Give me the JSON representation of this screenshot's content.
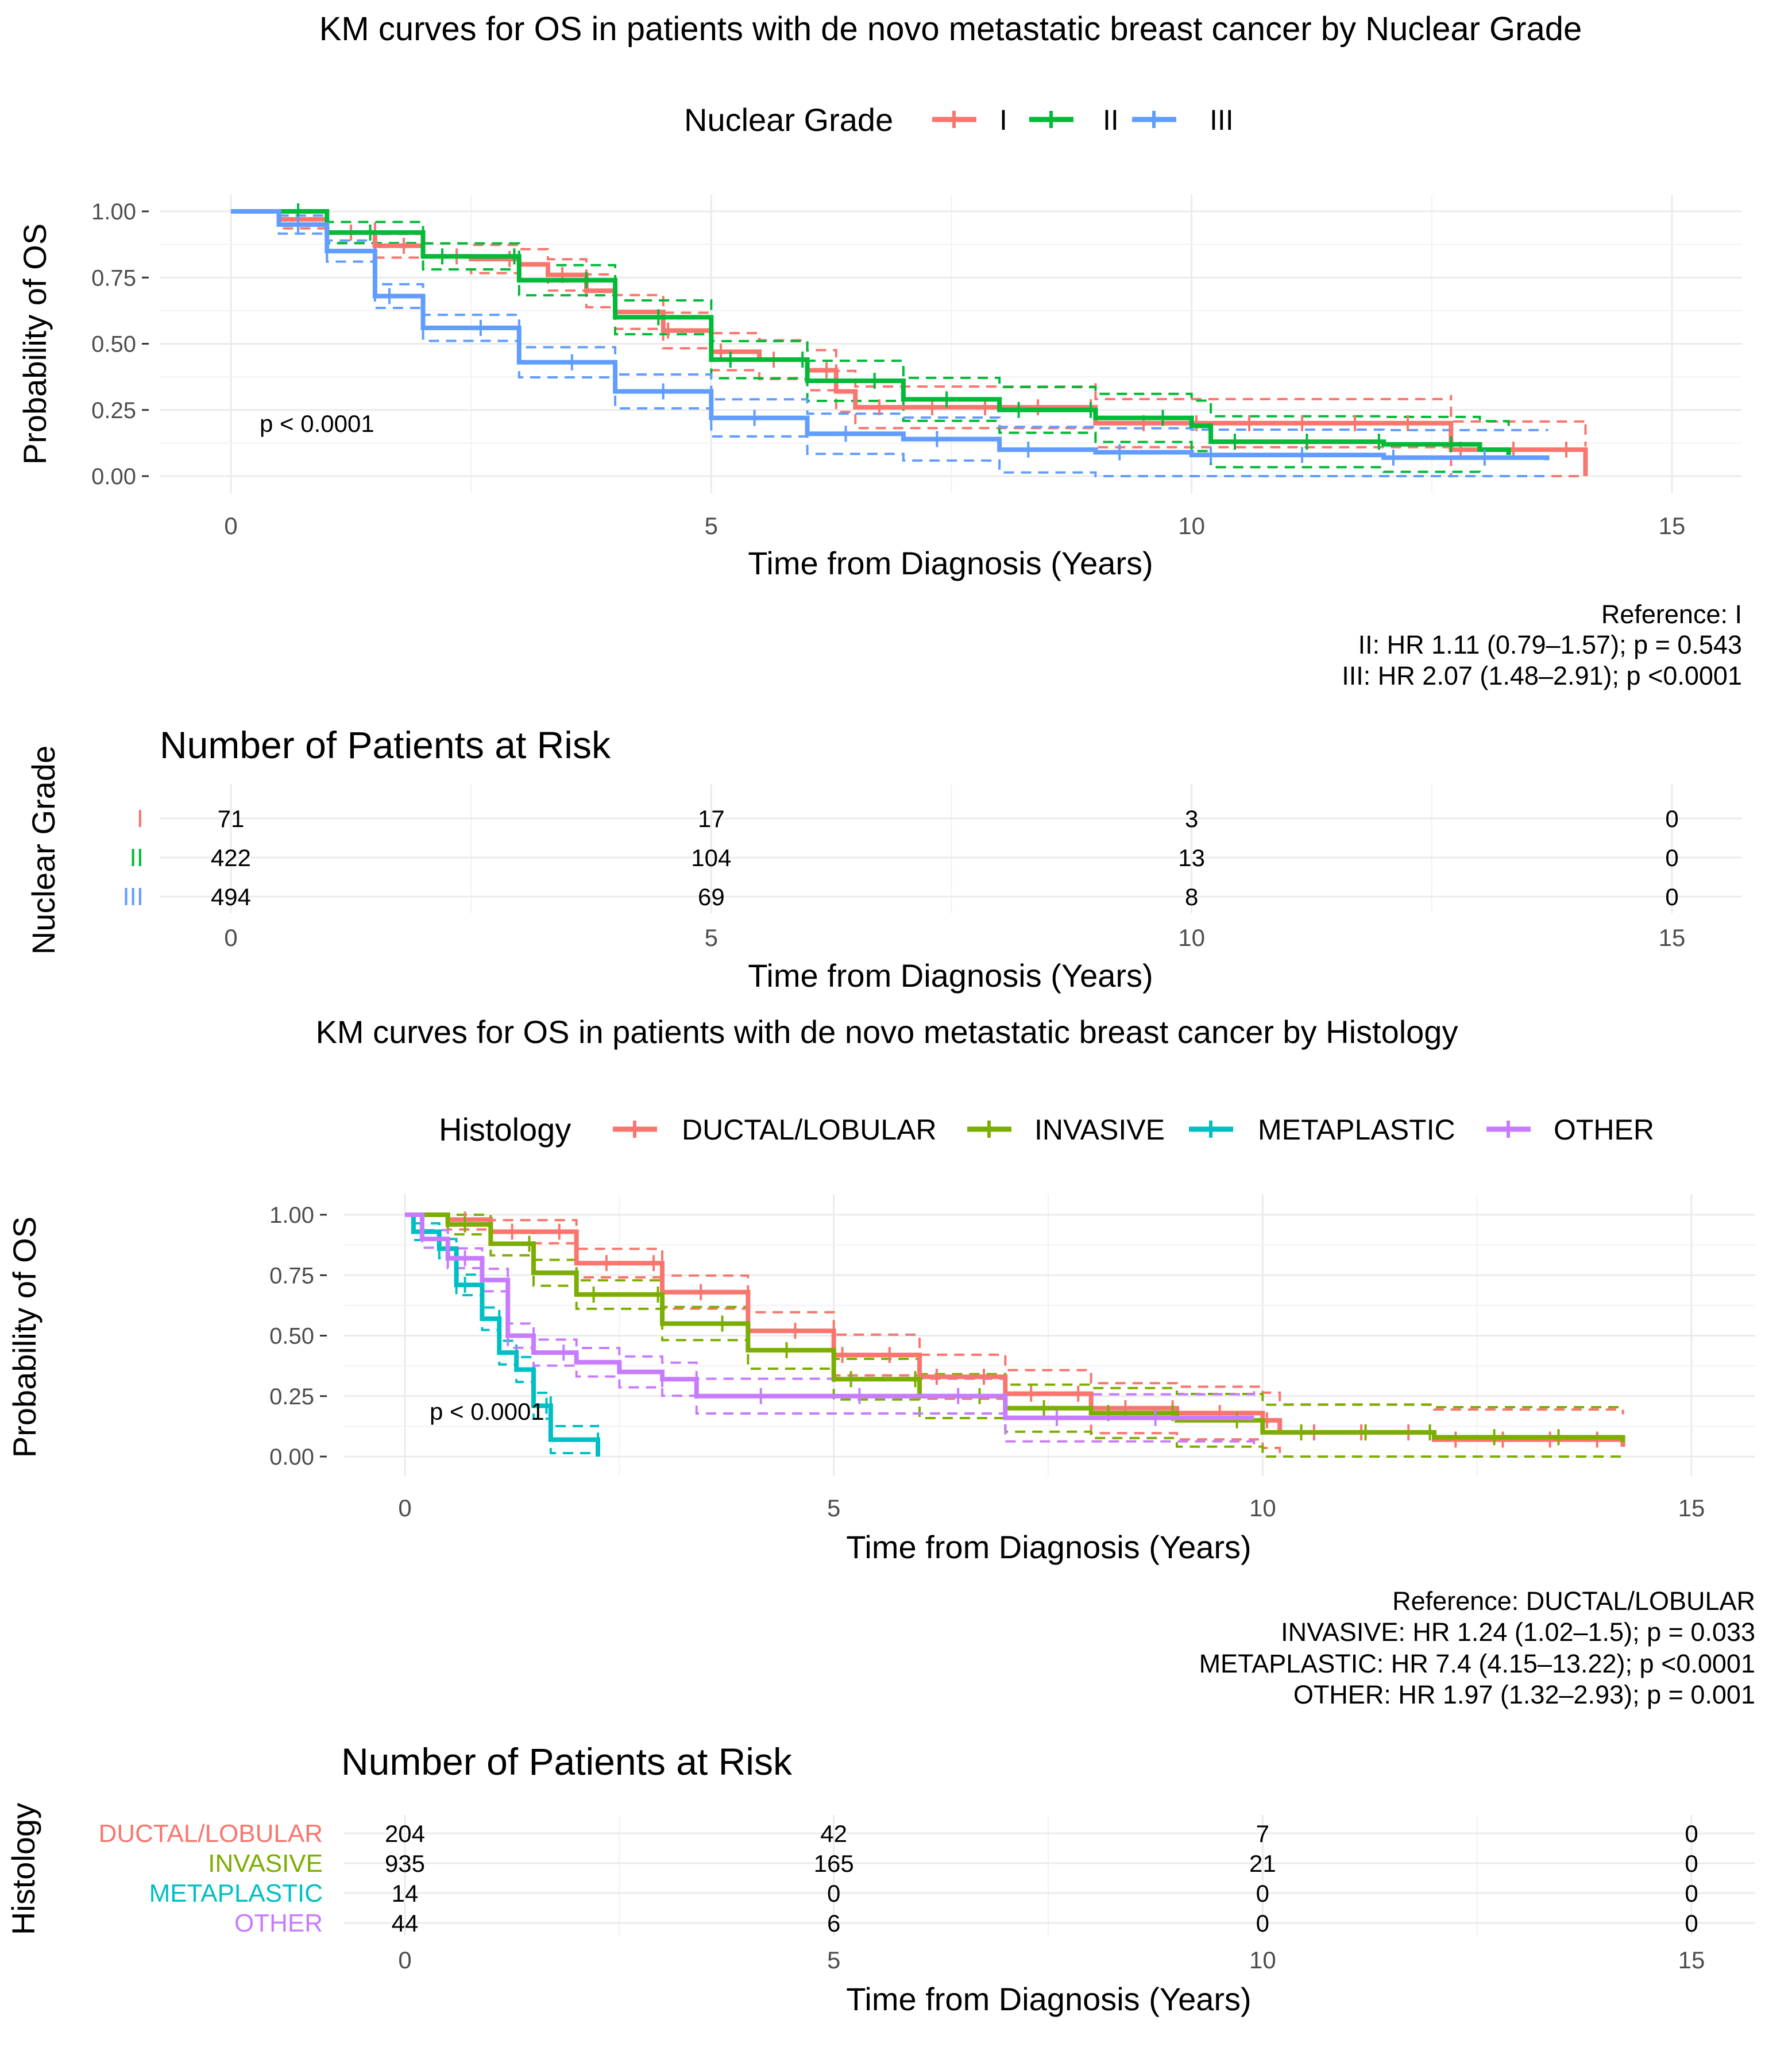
{
  "chart_data": [
    {
      "type": "line",
      "title": "KM curves for OS in patients with de novo metastatic breast cancer by Nuclear Grade",
      "legend_title": "Nuclear Grade",
      "legend_placement": "top",
      "xlabel": "Time from Diagnosis (Years)",
      "ylabel": "Probability of OS",
      "xlim": [
        0,
        15
      ],
      "ylim": [
        0,
        1
      ],
      "grid": true,
      "xticks": [
        "0",
        "5",
        "10",
        "15"
      ],
      "yticks": [
        "0.00",
        "0.25",
        "0.50",
        "0.75",
        "1.00"
      ],
      "pvalue": "p < 0.0001",
      "hr_text": [
        "Reference: I",
        "II: HR 1.11 (0.79–1.57); p = 0.543",
        "III: HR 2.07 (1.48–2.91); p <0.0001"
      ],
      "series": [
        {
          "name": "I",
          "color": "#F8766D",
          "points": [
            [
              0,
              1
            ],
            [
              0.5,
              0.97
            ],
            [
              1,
              0.92
            ],
            [
              1.5,
              0.87
            ],
            [
              2,
              0.83
            ],
            [
              2.5,
              0.82
            ],
            [
              3,
              0.8
            ],
            [
              3.3,
              0.76
            ],
            [
              3.7,
              0.7
            ],
            [
              4,
              0.62
            ],
            [
              4.5,
              0.55
            ],
            [
              5,
              0.47
            ],
            [
              5.5,
              0.44
            ],
            [
              6,
              0.4
            ],
            [
              6.3,
              0.32
            ],
            [
              6.5,
              0.26
            ],
            [
              9,
              0.26
            ],
            [
              9,
              0.2
            ],
            [
              12.7,
              0.2
            ],
            [
              12.7,
              0.1
            ],
            [
              14.1,
              0.1
            ],
            [
              14.1,
              0
            ]
          ]
        },
        {
          "name": "II",
          "color": "#00BA38",
          "points": [
            [
              0,
              1
            ],
            [
              1,
              0.92
            ],
            [
              2,
              0.83
            ],
            [
              3,
              0.74
            ],
            [
              4,
              0.6
            ],
            [
              5,
              0.44
            ],
            [
              6,
              0.36
            ],
            [
              7,
              0.29
            ],
            [
              8,
              0.25
            ],
            [
              9,
              0.22
            ],
            [
              10,
              0.19
            ],
            [
              10.2,
              0.13
            ],
            [
              12,
              0.12
            ],
            [
              13,
              0.1
            ],
            [
              13.3,
              0.08
            ]
          ]
        },
        {
          "name": "III",
          "color": "#619CFF",
          "points": [
            [
              0,
              1
            ],
            [
              0.5,
              0.95
            ],
            [
              1,
              0.85
            ],
            [
              1.5,
              0.68
            ],
            [
              2,
              0.56
            ],
            [
              3,
              0.43
            ],
            [
              4,
              0.32
            ],
            [
              5,
              0.22
            ],
            [
              6,
              0.16
            ],
            [
              7,
              0.14
            ],
            [
              8,
              0.1
            ],
            [
              9,
              0.09
            ],
            [
              10,
              0.08
            ],
            [
              12,
              0.07
            ],
            [
              13.7,
              0.06
            ]
          ]
        }
      ],
      "risk_table": {
        "title": "Number of Patients at Risk",
        "ylabel": "Nuclear Grade",
        "xlabel": "Time from Diagnosis (Years)",
        "times": [
          "0",
          "5",
          "10",
          "15"
        ],
        "rows": [
          {
            "label": "I",
            "values": [
              "71",
              "17",
              "3",
              "0"
            ]
          },
          {
            "label": "II",
            "values": [
              "422",
              "104",
              "13",
              "0"
            ]
          },
          {
            "label": "III",
            "values": [
              "494",
              "69",
              "8",
              "0"
            ]
          }
        ]
      }
    },
    {
      "type": "line",
      "title": "KM curves for OS in patients with de novo metastatic breast cancer by Histology",
      "legend_title": "Histology",
      "legend_placement": "top",
      "xlabel": "Time from Diagnosis (Years)",
      "ylabel": "Probability of OS",
      "xlim": [
        0,
        15
      ],
      "ylim": [
        0,
        1
      ],
      "grid": true,
      "xticks": [
        "0",
        "5",
        "10",
        "15"
      ],
      "yticks": [
        "0.00",
        "0.25",
        "0.50",
        "0.75",
        "1.00"
      ],
      "pvalue": "p < 0.0001",
      "hr_text": [
        "Reference: DUCTAL/LOBULAR",
        "INVASIVE: HR 1.24 (1.02–1.5); p = 0.033",
        "METAPLASTIC: HR 7.4 (4.15–13.22); p <0.0001",
        "OTHER: HR 1.97 (1.32–2.93); p = 0.001"
      ],
      "series": [
        {
          "name": "DUCTAL/LOBULAR",
          "color": "#F8766D",
          "points": [
            [
              0,
              1
            ],
            [
              0.5,
              0.98
            ],
            [
              1,
              0.93
            ],
            [
              2,
              0.8
            ],
            [
              3,
              0.68
            ],
            [
              4,
              0.52
            ],
            [
              5,
              0.42
            ],
            [
              6,
              0.33
            ],
            [
              7,
              0.26
            ],
            [
              8,
              0.2
            ],
            [
              9,
              0.18
            ],
            [
              10,
              0.15
            ],
            [
              10.2,
              0.1
            ],
            [
              12,
              0.07
            ],
            [
              14.2,
              0.04
            ]
          ]
        },
        {
          "name": "INVASIVE",
          "color": "#7CAE00",
          "points": [
            [
              0,
              1
            ],
            [
              0.5,
              0.96
            ],
            [
              1,
              0.88
            ],
            [
              1.5,
              0.76
            ],
            [
              2,
              0.67
            ],
            [
              3,
              0.55
            ],
            [
              4,
              0.44
            ],
            [
              5,
              0.32
            ],
            [
              6,
              0.25
            ],
            [
              7,
              0.2
            ],
            [
              8,
              0.18
            ],
            [
              9,
              0.15
            ],
            [
              10,
              0.1
            ],
            [
              12,
              0.08
            ],
            [
              14.2,
              0.06
            ]
          ]
        },
        {
          "name": "METAPLASTIC",
          "color": "#00BFC4",
          "points": [
            [
              0,
              1
            ],
            [
              0.1,
              0.93
            ],
            [
              0.4,
              0.86
            ],
            [
              0.6,
              0.71
            ],
            [
              0.9,
              0.57
            ],
            [
              1.1,
              0.43
            ],
            [
              1.3,
              0.36
            ],
            [
              1.5,
              0.21
            ],
            [
              1.7,
              0.07
            ],
            [
              2.25,
              0.07
            ],
            [
              2.25,
              0
            ]
          ]
        },
        {
          "name": "OTHER",
          "color": "#C77CFF",
          "points": [
            [
              0,
              1
            ],
            [
              0.2,
              0.9
            ],
            [
              0.5,
              0.82
            ],
            [
              0.9,
              0.73
            ],
            [
              1.2,
              0.5
            ],
            [
              1.5,
              0.43
            ],
            [
              2,
              0.39
            ],
            [
              2.5,
              0.35
            ],
            [
              3,
              0.32
            ],
            [
              3.4,
              0.25
            ],
            [
              7,
              0.25
            ],
            [
              7,
              0.16
            ],
            [
              9.9,
              0.16
            ]
          ]
        }
      ],
      "risk_table": {
        "title": "Number of Patients at Risk",
        "ylabel": "Histology",
        "xlabel": "Time from Diagnosis (Years)",
        "times": [
          "0",
          "5",
          "10",
          "15"
        ],
        "rows": [
          {
            "label": "DUCTAL/LOBULAR",
            "values": [
              "204",
              "42",
              "7",
              "0"
            ]
          },
          {
            "label": "INVASIVE",
            "values": [
              "935",
              "165",
              "21",
              "0"
            ]
          },
          {
            "label": "METAPLASTIC",
            "values": [
              "14",
              "0",
              "0",
              "0"
            ]
          },
          {
            "label": "OTHER",
            "values": [
              "44",
              "6",
              "0",
              "0"
            ]
          }
        ]
      }
    }
  ]
}
